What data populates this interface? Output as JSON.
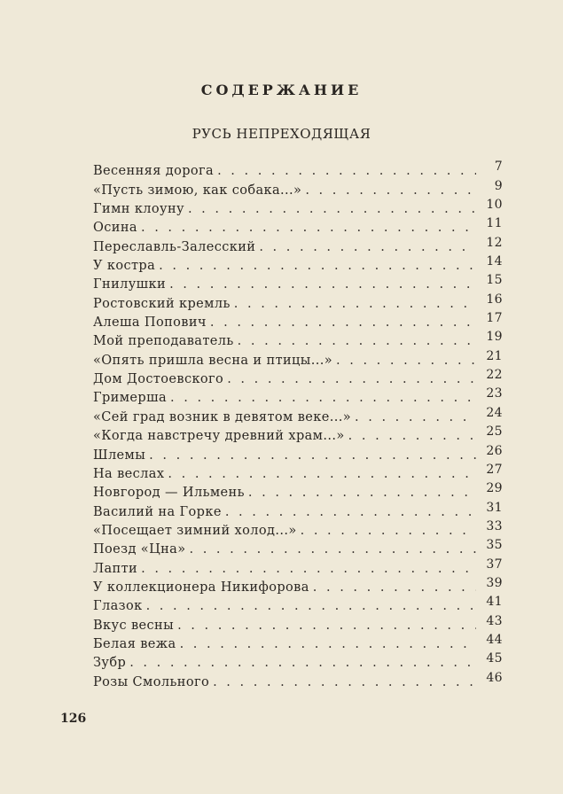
{
  "header": {
    "title": "СОДЕРЖАНИЕ",
    "section": "РУСЬ НЕПРЕХОДЯЩАЯ"
  },
  "entries": [
    {
      "title": "Весенняя дорога",
      "page": "7"
    },
    {
      "title": "«Пусть зимою, как собака...»",
      "page": "9"
    },
    {
      "title": "Гимн клоуну",
      "page": "10"
    },
    {
      "title": "Осина",
      "page": "11"
    },
    {
      "title": "Переславль-Залесский",
      "page": "12"
    },
    {
      "title": "У костра",
      "page": "14"
    },
    {
      "title": "Гнилушки",
      "page": "15"
    },
    {
      "title": "Ростовский кремль",
      "page": "16"
    },
    {
      "title": "Алеша Попович",
      "page": "17"
    },
    {
      "title": "Мой преподаватель",
      "page": "19"
    },
    {
      "title": "«Опять пришла весна и птицы...»",
      "page": "21"
    },
    {
      "title": "Дом Достоевского",
      "page": "22"
    },
    {
      "title": "Гримерша",
      "page": "23"
    },
    {
      "title": "«Сей град возник в девятом веке...»",
      "page": "24"
    },
    {
      "title": "«Когда навстречу древний храм...»",
      "page": "25"
    },
    {
      "title": "Шлемы",
      "page": "26"
    },
    {
      "title": "На веслах",
      "page": "27"
    },
    {
      "title": "Новгород — Ильмень",
      "page": "29"
    },
    {
      "title": "Василий на Горке",
      "page": "31"
    },
    {
      "title": "«Посещает зимний холод...»",
      "page": "33"
    },
    {
      "title": "Поезд «Цна»",
      "page": "35"
    },
    {
      "title": "Лапти",
      "page": "37"
    },
    {
      "title": "У коллекционера Никифорова",
      "page": "39"
    },
    {
      "title": "Глазок",
      "page": "41"
    },
    {
      "title": "Вкус весны",
      "page": "43"
    },
    {
      "title": "Белая вежа",
      "page": "44"
    },
    {
      "title": "Зубр",
      "page": "45"
    },
    {
      "title": "Розы Смольного",
      "page": "46"
    }
  ],
  "footer": {
    "page_number": "126"
  }
}
